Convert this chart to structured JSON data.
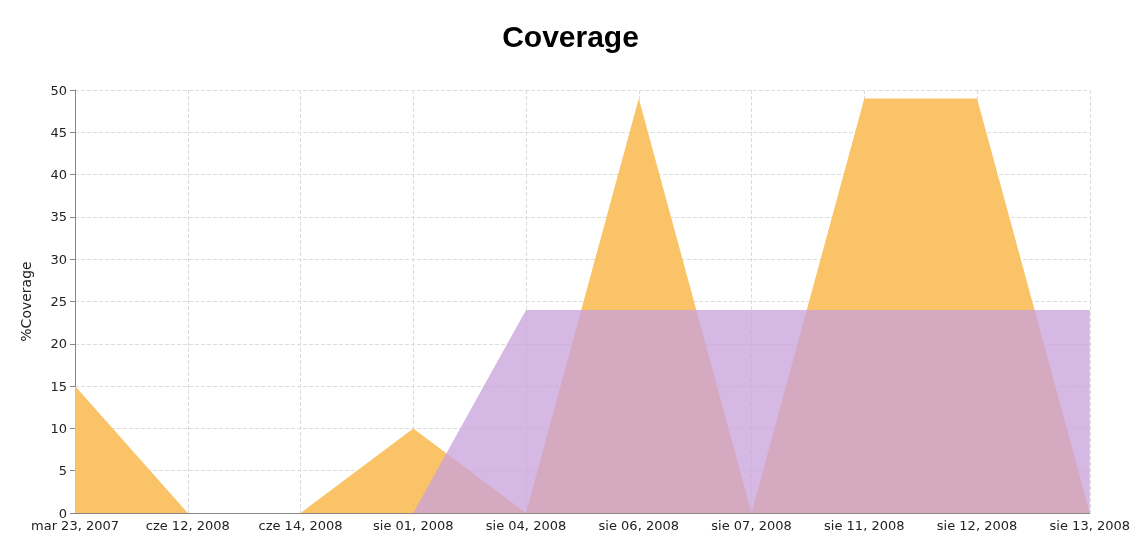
{
  "chart_data": {
    "type": "area",
    "title": "Coverage",
    "ylabel": "%Coverage",
    "categories": [
      "mar 23, 2007",
      "cze 12, 2008",
      "cze 14, 2008",
      "sie 01, 2008",
      "sie 04, 2008",
      "sie 06, 2008",
      "sie 07, 2008",
      "sie 11, 2008",
      "sie 12, 2008",
      "sie 13, 2008"
    ],
    "series": [
      {
        "color": "#fbc060",
        "values": [
          15,
          0,
          0,
          10,
          0,
          49,
          0,
          49,
          49,
          0
        ]
      },
      {
        "color": "#c8a0dc",
        "values": [
          null,
          null,
          null,
          0,
          24,
          24,
          24,
          24,
          24,
          24
        ]
      }
    ],
    "ylim": [
      0,
      50
    ],
    "yticks": [
      0,
      5,
      10,
      15,
      20,
      25,
      30,
      35,
      40,
      45,
      50
    ],
    "grid": true
  }
}
